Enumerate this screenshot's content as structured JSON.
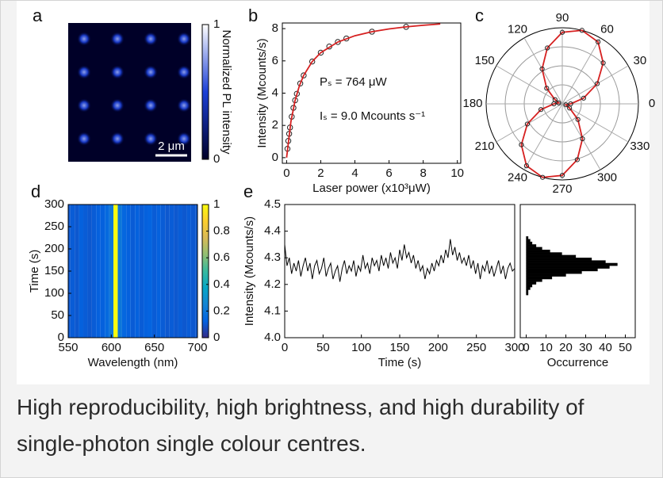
{
  "chart_data": [
    {
      "type": "image",
      "panel_label": "a",
      "colorbar_label": "Normalized PL intensity",
      "colorbar_lim": [
        0,
        1
      ],
      "colorbar_ticks": [
        0,
        1
      ],
      "colormap": [
        "#000028",
        "#1b3fd6",
        "#ffffff"
      ],
      "scale_bar": "2 μm"
    },
    {
      "type": "scatter",
      "panel_label": "b",
      "xlabel": "Laser power (x10³μW)",
      "ylabel": "Intensity (Mcounts/s)",
      "xlim": [
        -0.25,
        10.2
      ],
      "xticks": [
        0,
        2,
        4,
        6,
        8,
        10
      ],
      "ylim": [
        -0.35,
        8.35
      ],
      "yticks": [
        0,
        2,
        4,
        6,
        8
      ],
      "annotations": [
        "Pₛ = 764 μW",
        "Iₛ = 9.0 Mcounts s⁻¹"
      ],
      "series": [
        {
          "mode": "markers",
          "color": "#222222",
          "x": [
            0.05,
            0.1,
            0.15,
            0.2,
            0.3,
            0.4,
            0.5,
            0.6,
            0.8,
            1.0,
            1.5,
            2.0,
            2.5,
            3.0,
            3.5,
            5.0,
            7.0
          ],
          "values": [
            0.55,
            1.04,
            1.48,
            1.87,
            2.54,
            3.09,
            3.56,
            3.96,
            4.6,
            5.1,
            5.96,
            6.51,
            6.89,
            7.17,
            7.39,
            7.81,
            8.11
          ]
        },
        {
          "mode": "line",
          "color": "#d62020",
          "x": [
            0,
            0.25,
            0.5,
            0.75,
            1,
            1.5,
            2,
            3,
            4,
            5,
            6,
            7,
            8,
            9
          ],
          "values": [
            0,
            2.22,
            3.56,
            4.46,
            5.1,
            5.96,
            6.51,
            7.17,
            7.56,
            7.81,
            7.98,
            8.11,
            8.21,
            8.29
          ]
        }
      ]
    },
    {
      "type": "polar",
      "panel_label": "c",
      "rlim": [
        0,
        1
      ],
      "r_grid": [
        0.25,
        0.5,
        0.75,
        1
      ],
      "angle_ticks": [
        0,
        30,
        60,
        90,
        120,
        150,
        180,
        210,
        240,
        270,
        300,
        330
      ],
      "series": [
        {
          "color": "#d62020",
          "marker_color": "#222222",
          "x": [
            0,
            15,
            30,
            45,
            60,
            75,
            90,
            105,
            120,
            135,
            150,
            165,
            180,
            195,
            210,
            225,
            240,
            255,
            270,
            285,
            300,
            315,
            330,
            345
          ],
          "values": [
            0.11,
            0.29,
            0.53,
            0.76,
            0.94,
            1.0,
            0.94,
            0.76,
            0.53,
            0.29,
            0.11,
            0.05,
            0.11,
            0.29,
            0.53,
            0.76,
            0.94,
            1.0,
            0.94,
            0.76,
            0.53,
            0.29,
            0.11,
            0.05
          ]
        }
      ]
    },
    {
      "type": "heatmap",
      "panel_label": "d",
      "xlabel": "Wavelength (nm)",
      "ylabel": "Time (s)",
      "xlim": [
        550,
        700
      ],
      "xticks": [
        550,
        600,
        650,
        700
      ],
      "ylim": [
        0,
        300
      ],
      "yticks": [
        0,
        50,
        100,
        150,
        200,
        250,
        300
      ],
      "colorbar_lim": [
        0,
        1
      ],
      "colorbar_ticks": [
        0,
        0.2,
        0.4,
        0.6,
        0.8,
        1
      ],
      "colormap": [
        "#352a87",
        "#0363e1",
        "#1485d4",
        "#06a7c6",
        "#38b99e",
        "#92bf73",
        "#d9ba56",
        "#fcce2e",
        "#f9fb0e"
      ],
      "x": [
        550,
        555,
        560,
        565,
        570,
        575,
        580,
        585,
        590,
        595,
        600,
        605,
        610,
        615,
        620,
        625,
        630,
        635,
        640,
        645,
        650,
        655,
        660,
        665,
        670,
        675,
        680,
        685,
        690,
        695,
        700
      ],
      "values": [
        0.1,
        0.11,
        0.1,
        0.12,
        0.11,
        0.1,
        0.11,
        0.12,
        0.12,
        0.15,
        0.2,
        1,
        0.2,
        0.14,
        0.12,
        0.11,
        0.12,
        0.11,
        0.12,
        0.13,
        0.11,
        0.12,
        0.11,
        0.1,
        0.11,
        0.1,
        0.11,
        0.1,
        0.11,
        0.1,
        0.1
      ]
    },
    {
      "type": "line",
      "panel_label": "e",
      "xlabel": "Time (s)",
      "ylabel": "Intensity (Mcounts/s)",
      "color": "#000000",
      "xlim": [
        0,
        300
      ],
      "xticks": [
        0,
        50,
        100,
        150,
        200,
        250,
        300
      ],
      "ylim": [
        4.0,
        4.5
      ],
      "yticks": [
        {
          "value": 4.0,
          "label": "4.0"
        },
        4.1,
        4.2,
        4.3,
        4.4,
        {
          "value": 4.5,
          "label": "4.5"
        }
      ],
      "x": [
        0,
        3,
        6,
        9,
        12,
        15,
        18,
        21,
        24,
        27,
        30,
        33,
        36,
        39,
        42,
        45,
        48,
        51,
        54,
        57,
        60,
        63,
        66,
        69,
        72,
        75,
        78,
        81,
        84,
        87,
        90,
        93,
        96,
        99,
        102,
        105,
        108,
        111,
        114,
        117,
        120,
        123,
        126,
        129,
        132,
        135,
        138,
        141,
        144,
        147,
        150,
        153,
        156,
        159,
        162,
        165,
        168,
        171,
        174,
        177,
        180,
        183,
        186,
        189,
        192,
        195,
        198,
        201,
        204,
        207,
        210,
        213,
        216,
        219,
        222,
        225,
        228,
        231,
        234,
        237,
        240,
        243,
        246,
        249,
        252,
        255,
        258,
        261,
        264,
        267,
        270,
        273,
        276,
        279,
        282,
        285,
        288,
        291,
        294,
        297,
        300
      ],
      "values": [
        4.35,
        4.27,
        4.3,
        4.24,
        4.28,
        4.25,
        4.29,
        4.23,
        4.27,
        4.3,
        4.25,
        4.28,
        4.22,
        4.27,
        4.29,
        4.24,
        4.26,
        4.3,
        4.23,
        4.26,
        4.28,
        4.22,
        4.25,
        4.27,
        4.21,
        4.26,
        4.29,
        4.24,
        4.27,
        4.25,
        4.29,
        4.23,
        4.27,
        4.25,
        4.31,
        4.26,
        4.28,
        4.24,
        4.3,
        4.27,
        4.29,
        4.25,
        4.31,
        4.27,
        4.3,
        4.26,
        4.32,
        4.28,
        4.3,
        4.26,
        4.33,
        4.29,
        4.35,
        4.3,
        4.32,
        4.28,
        4.31,
        4.26,
        4.29,
        4.25,
        4.27,
        4.22,
        4.26,
        4.24,
        4.28,
        4.25,
        4.29,
        4.27,
        4.31,
        4.28,
        4.33,
        4.3,
        4.37,
        4.31,
        4.34,
        4.29,
        4.32,
        4.28,
        4.3,
        4.27,
        4.31,
        4.26,
        4.29,
        4.24,
        4.28,
        4.22,
        4.27,
        4.25,
        4.29,
        4.24,
        4.27,
        4.23,
        4.26,
        4.29,
        4.24,
        4.27,
        4.22,
        4.26,
        4.28,
        4.25,
        4.26
      ]
    },
    {
      "type": "histogram",
      "orientation": "horizontal",
      "xlabel": "Occurrence",
      "color": "#000000",
      "xlim": [
        -3,
        55
      ],
      "xticks": [
        0,
        10,
        20,
        30,
        40,
        50
      ],
      "ylim": [
        4.0,
        4.5
      ],
      "bins": [
        4.16,
        4.17,
        4.18,
        4.19,
        4.2,
        4.21,
        4.22,
        4.23,
        4.24,
        4.25,
        4.26,
        4.27,
        4.28,
        4.29,
        4.3,
        4.31,
        4.32,
        4.33,
        4.34,
        4.35,
        4.36,
        4.37,
        4.38
      ],
      "values": [
        1,
        1,
        2,
        3,
        5,
        8,
        13,
        20,
        28,
        36,
        42,
        46,
        40,
        33,
        25,
        18,
        12,
        8,
        5,
        3,
        2,
        1
      ]
    }
  ],
  "caption": "High reproducibility, high brightness, and high durability of  single-photon single colour centres."
}
